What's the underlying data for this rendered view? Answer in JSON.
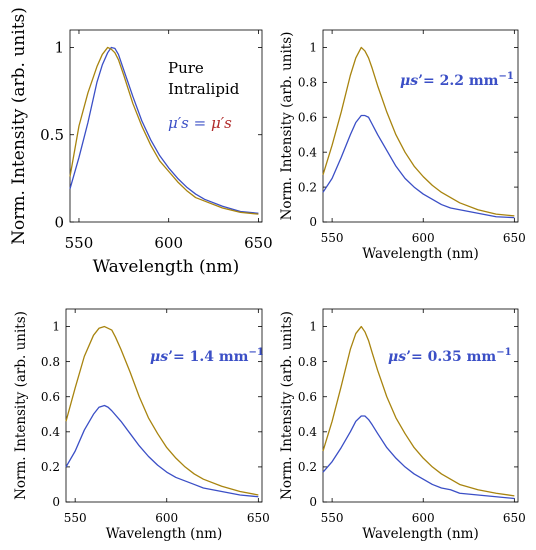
{
  "colors": {
    "blue": "#3b4fc6",
    "olive": "#a8840f",
    "axis": "#000000",
    "label_dark": "#000000"
  },
  "chart_data": [
    {
      "type": "line",
      "xlabel": "Wavelength (nm)",
      "ylabel": "Norm. Intensity (arb. units)",
      "xlim": [
        545,
        652
      ],
      "ylim": [
        0,
        1.1
      ],
      "xticks": [
        550,
        600,
        650
      ],
      "yticks": [
        0,
        0.5,
        1
      ],
      "annotation_lines": [
        "Pure",
        "Intralipid"
      ],
      "annotation_formula": {
        "lhs": "μ′s",
        "eq": " = ",
        "rhs": "μ′s"
      },
      "series": [
        {
          "color": "blue",
          "x": [
            545,
            550,
            555,
            560,
            563,
            566,
            568,
            570,
            572,
            575,
            580,
            585,
            590,
            595,
            600,
            605,
            610,
            615,
            620,
            630,
            640,
            650
          ],
          "y": [
            0.19,
            0.37,
            0.57,
            0.8,
            0.9,
            0.97,
            1.0,
            0.995,
            0.96,
            0.87,
            0.72,
            0.58,
            0.47,
            0.38,
            0.31,
            0.25,
            0.2,
            0.16,
            0.13,
            0.09,
            0.06,
            0.05
          ]
        },
        {
          "color": "olive",
          "x": [
            545,
            550,
            555,
            560,
            563,
            566,
            568,
            570,
            572,
            575,
            580,
            585,
            590,
            595,
            600,
            605,
            610,
            615,
            620,
            630,
            640,
            650
          ],
          "y": [
            0.26,
            0.55,
            0.74,
            0.89,
            0.96,
            1.0,
            0.99,
            0.97,
            0.93,
            0.84,
            0.68,
            0.55,
            0.44,
            0.35,
            0.29,
            0.23,
            0.18,
            0.14,
            0.12,
            0.08,
            0.055,
            0.045
          ]
        }
      ]
    },
    {
      "type": "line",
      "xlabel": "Wavelength (nm)",
      "ylabel": "Norm. Intensity (arb. units)",
      "xlim": [
        545,
        652
      ],
      "ylim": [
        0,
        1.1
      ],
      "xticks": [
        550,
        600,
        650
      ],
      "yticks": [
        0,
        0.2,
        0.4,
        0.6,
        0.8,
        1
      ],
      "annotation_formula": {
        "lhs": "μs",
        "eq": "’= 2.2 mm",
        "rhs": "−1"
      },
      "series": [
        {
          "color": "blue",
          "x": [
            545,
            550,
            555,
            560,
            563,
            566,
            568,
            570,
            572,
            575,
            580,
            585,
            590,
            595,
            600,
            605,
            610,
            615,
            620,
            630,
            640,
            650
          ],
          "y": [
            0.17,
            0.25,
            0.37,
            0.5,
            0.57,
            0.61,
            0.61,
            0.6,
            0.56,
            0.5,
            0.41,
            0.32,
            0.25,
            0.2,
            0.16,
            0.13,
            0.1,
            0.08,
            0.07,
            0.05,
            0.03,
            0.025
          ]
        },
        {
          "color": "olive",
          "x": [
            545,
            550,
            555,
            560,
            563,
            566,
            568,
            570,
            572,
            575,
            580,
            585,
            590,
            595,
            600,
            605,
            610,
            615,
            620,
            630,
            640,
            650
          ],
          "y": [
            0.27,
            0.44,
            0.63,
            0.84,
            0.94,
            1.0,
            0.98,
            0.94,
            0.88,
            0.78,
            0.63,
            0.5,
            0.4,
            0.32,
            0.26,
            0.21,
            0.17,
            0.14,
            0.11,
            0.07,
            0.045,
            0.035
          ]
        }
      ]
    },
    {
      "type": "line",
      "xlabel": "Wavelength (nm)",
      "ylabel": "Norm. Intensity (arb. units)",
      "xlim": [
        545,
        652
      ],
      "ylim": [
        0,
        1.1
      ],
      "xticks": [
        550,
        600,
        650
      ],
      "yticks": [
        0,
        0.2,
        0.4,
        0.6,
        0.8,
        1
      ],
      "annotation_formula": {
        "lhs": "μs",
        "eq": "’= 1.4 mm",
        "rhs": "−1"
      },
      "series": [
        {
          "color": "blue",
          "x": [
            545,
            550,
            555,
            560,
            563,
            566,
            568,
            570,
            575,
            580,
            585,
            590,
            595,
            600,
            605,
            610,
            615,
            620,
            630,
            640,
            650
          ],
          "y": [
            0.2,
            0.29,
            0.41,
            0.5,
            0.54,
            0.55,
            0.54,
            0.52,
            0.46,
            0.39,
            0.32,
            0.26,
            0.21,
            0.17,
            0.14,
            0.12,
            0.1,
            0.08,
            0.06,
            0.04,
            0.03
          ]
        },
        {
          "color": "olive",
          "x": [
            545,
            550,
            555,
            560,
            563,
            566,
            568,
            570,
            572,
            575,
            580,
            585,
            590,
            595,
            600,
            605,
            610,
            615,
            620,
            630,
            640,
            650
          ],
          "y": [
            0.46,
            0.65,
            0.83,
            0.95,
            0.99,
            1.0,
            0.99,
            0.98,
            0.94,
            0.87,
            0.74,
            0.6,
            0.48,
            0.39,
            0.31,
            0.25,
            0.2,
            0.16,
            0.13,
            0.09,
            0.06,
            0.04
          ]
        }
      ]
    },
    {
      "type": "line",
      "xlabel": "Wavelength (nm)",
      "ylabel": "Norm. Intensity (arb. units)",
      "xlim": [
        545,
        652
      ],
      "ylim": [
        0,
        1.1
      ],
      "xticks": [
        550,
        600,
        650
      ],
      "yticks": [
        0,
        0.2,
        0.4,
        0.6,
        0.8,
        1
      ],
      "annotation_formula": {
        "lhs": "μs",
        "eq": "’= 0.35 mm",
        "rhs": "−1"
      },
      "series": [
        {
          "color": "blue",
          "x": [
            545,
            550,
            555,
            560,
            563,
            566,
            568,
            570,
            572,
            575,
            580,
            585,
            590,
            595,
            600,
            605,
            610,
            615,
            620,
            630,
            640,
            650
          ],
          "y": [
            0.17,
            0.23,
            0.31,
            0.4,
            0.46,
            0.49,
            0.49,
            0.47,
            0.44,
            0.39,
            0.31,
            0.25,
            0.2,
            0.16,
            0.13,
            0.1,
            0.08,
            0.07,
            0.05,
            0.04,
            0.03,
            0.02
          ]
        },
        {
          "color": "olive",
          "x": [
            545,
            550,
            555,
            560,
            563,
            566,
            568,
            570,
            572,
            575,
            580,
            585,
            590,
            595,
            600,
            605,
            610,
            615,
            620,
            630,
            640,
            650
          ],
          "y": [
            0.29,
            0.46,
            0.66,
            0.87,
            0.96,
            1.0,
            0.97,
            0.92,
            0.85,
            0.75,
            0.6,
            0.48,
            0.39,
            0.31,
            0.25,
            0.2,
            0.16,
            0.13,
            0.1,
            0.07,
            0.05,
            0.035
          ]
        }
      ]
    }
  ]
}
